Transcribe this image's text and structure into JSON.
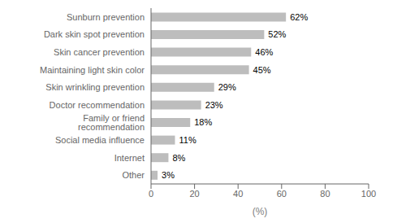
{
  "chart_data": {
    "type": "bar",
    "orientation": "horizontal",
    "categories": [
      "Other",
      "Internet",
      "Social media influence",
      "Family or friend recommendation",
      "Doctor recommendation",
      "Skin wrinkling prevention",
      "Maintaining light skin color",
      "Skin cancer prevention",
      "Dark skin spot prevention",
      "Sunburn prevention"
    ],
    "values": [
      3,
      8,
      11,
      18,
      23,
      29,
      45,
      46,
      52,
      62
    ],
    "value_labels": [
      "3%",
      "8%",
      "11%",
      "18%",
      "23%",
      "29%",
      "45%",
      "46%",
      "52%",
      "62%"
    ],
    "data_labels": true,
    "color": "#bdbdbd",
    "xlabel": "(%)",
    "xlim": [
      0,
      100
    ],
    "xticks": [
      0,
      20,
      40,
      60,
      80,
      100
    ]
  }
}
